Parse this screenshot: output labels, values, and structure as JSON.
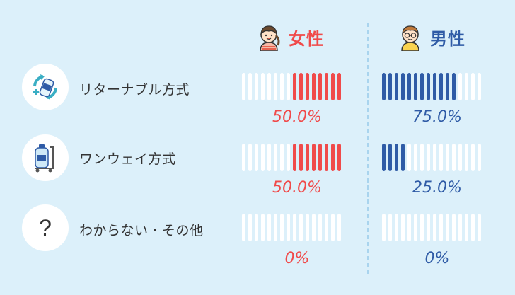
{
  "colors": {
    "female": "#f04a4a",
    "male": "#2f5ba6",
    "empty": "#ffffff",
    "background": "#dcf0fa"
  },
  "icons": {
    "female": "girl-avatar-icon",
    "male": "boy-avatar-icon",
    "rows": [
      "recycle-bottle-icon",
      "water-cart-icon",
      "question-mark-icon"
    ]
  },
  "chart_data": {
    "type": "bar",
    "categories": [
      "リターナブル方式",
      "ワンウェイ方式",
      "わからない・その他"
    ],
    "series": [
      {
        "name": "女性",
        "values": [
          50.0,
          50.0,
          0
        ],
        "labels": [
          "50.0%",
          "50.0%",
          "0%"
        ]
      },
      {
        "name": "男性",
        "values": [
          75.0,
          25.0,
          0
        ],
        "labels": [
          "75.0%",
          "25.0%",
          "0%"
        ]
      }
    ],
    "ylim": [
      0,
      100
    ],
    "ticks_per_bar": 16
  }
}
